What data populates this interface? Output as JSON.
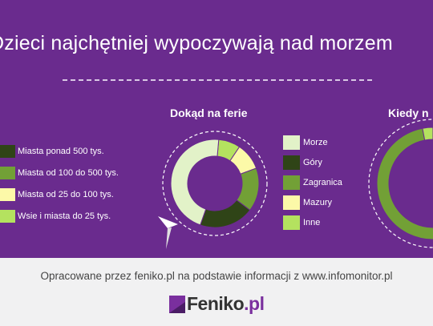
{
  "title": "Dzieci najchętniej wypoczywają nad morzem",
  "source_text": "Opracowane przez feniko.pl na podstawie informacji z www.infomonitor.pl",
  "logo": {
    "name": "Feniko",
    "suffix": ".pl"
  },
  "colors": {
    "background": "#6a2b8e",
    "dark_green": "#2f4417",
    "mid_green": "#72a036",
    "pale_yellow": "#fcf9a8",
    "light_green": "#b4e25f",
    "pale_green": "#e2f2c8",
    "footer": "#f1f1f2"
  },
  "legend_left": [
    {
      "label": "Miasta ponad 500 tys.",
      "color": "#2f4417"
    },
    {
      "label": "Miasta od 100 do 500 tys.",
      "color": "#72a036"
    },
    {
      "label": "Miasta od 25 do 100 tys.",
      "color": "#fcf9a8"
    },
    {
      "label": "Wsie i miasta do 25 tys.",
      "color": "#b4e25f"
    }
  ],
  "legend_right": [
    {
      "label": "Morze",
      "color": "#e2f2c8"
    },
    {
      "label": "Góry",
      "color": "#2f4417"
    },
    {
      "label": "Zagranica",
      "color": "#72a036"
    },
    {
      "label": "Mazury",
      "color": "#fcf9a8"
    },
    {
      "label": "Inne",
      "color": "#b4e25f"
    }
  ],
  "chart_data": [
    {
      "type": "pie",
      "variant": "donut",
      "title": "Dokąd na ferie",
      "categories": [
        "Inne",
        "Mazury",
        "Zagranica",
        "Góry",
        "Morze"
      ],
      "values": [
        8,
        10,
        16,
        20,
        46
      ],
      "colors": [
        "#b4e25f",
        "#fcf9a8",
        "#72a036",
        "#2f4417",
        "#e2f2c8"
      ]
    },
    {
      "type": "pie",
      "variant": "donut",
      "title": "Kiedy n",
      "partially_visible": true,
      "values": [
        97,
        3
      ],
      "colors": [
        "#72a036",
        "#b4e25f"
      ]
    }
  ]
}
